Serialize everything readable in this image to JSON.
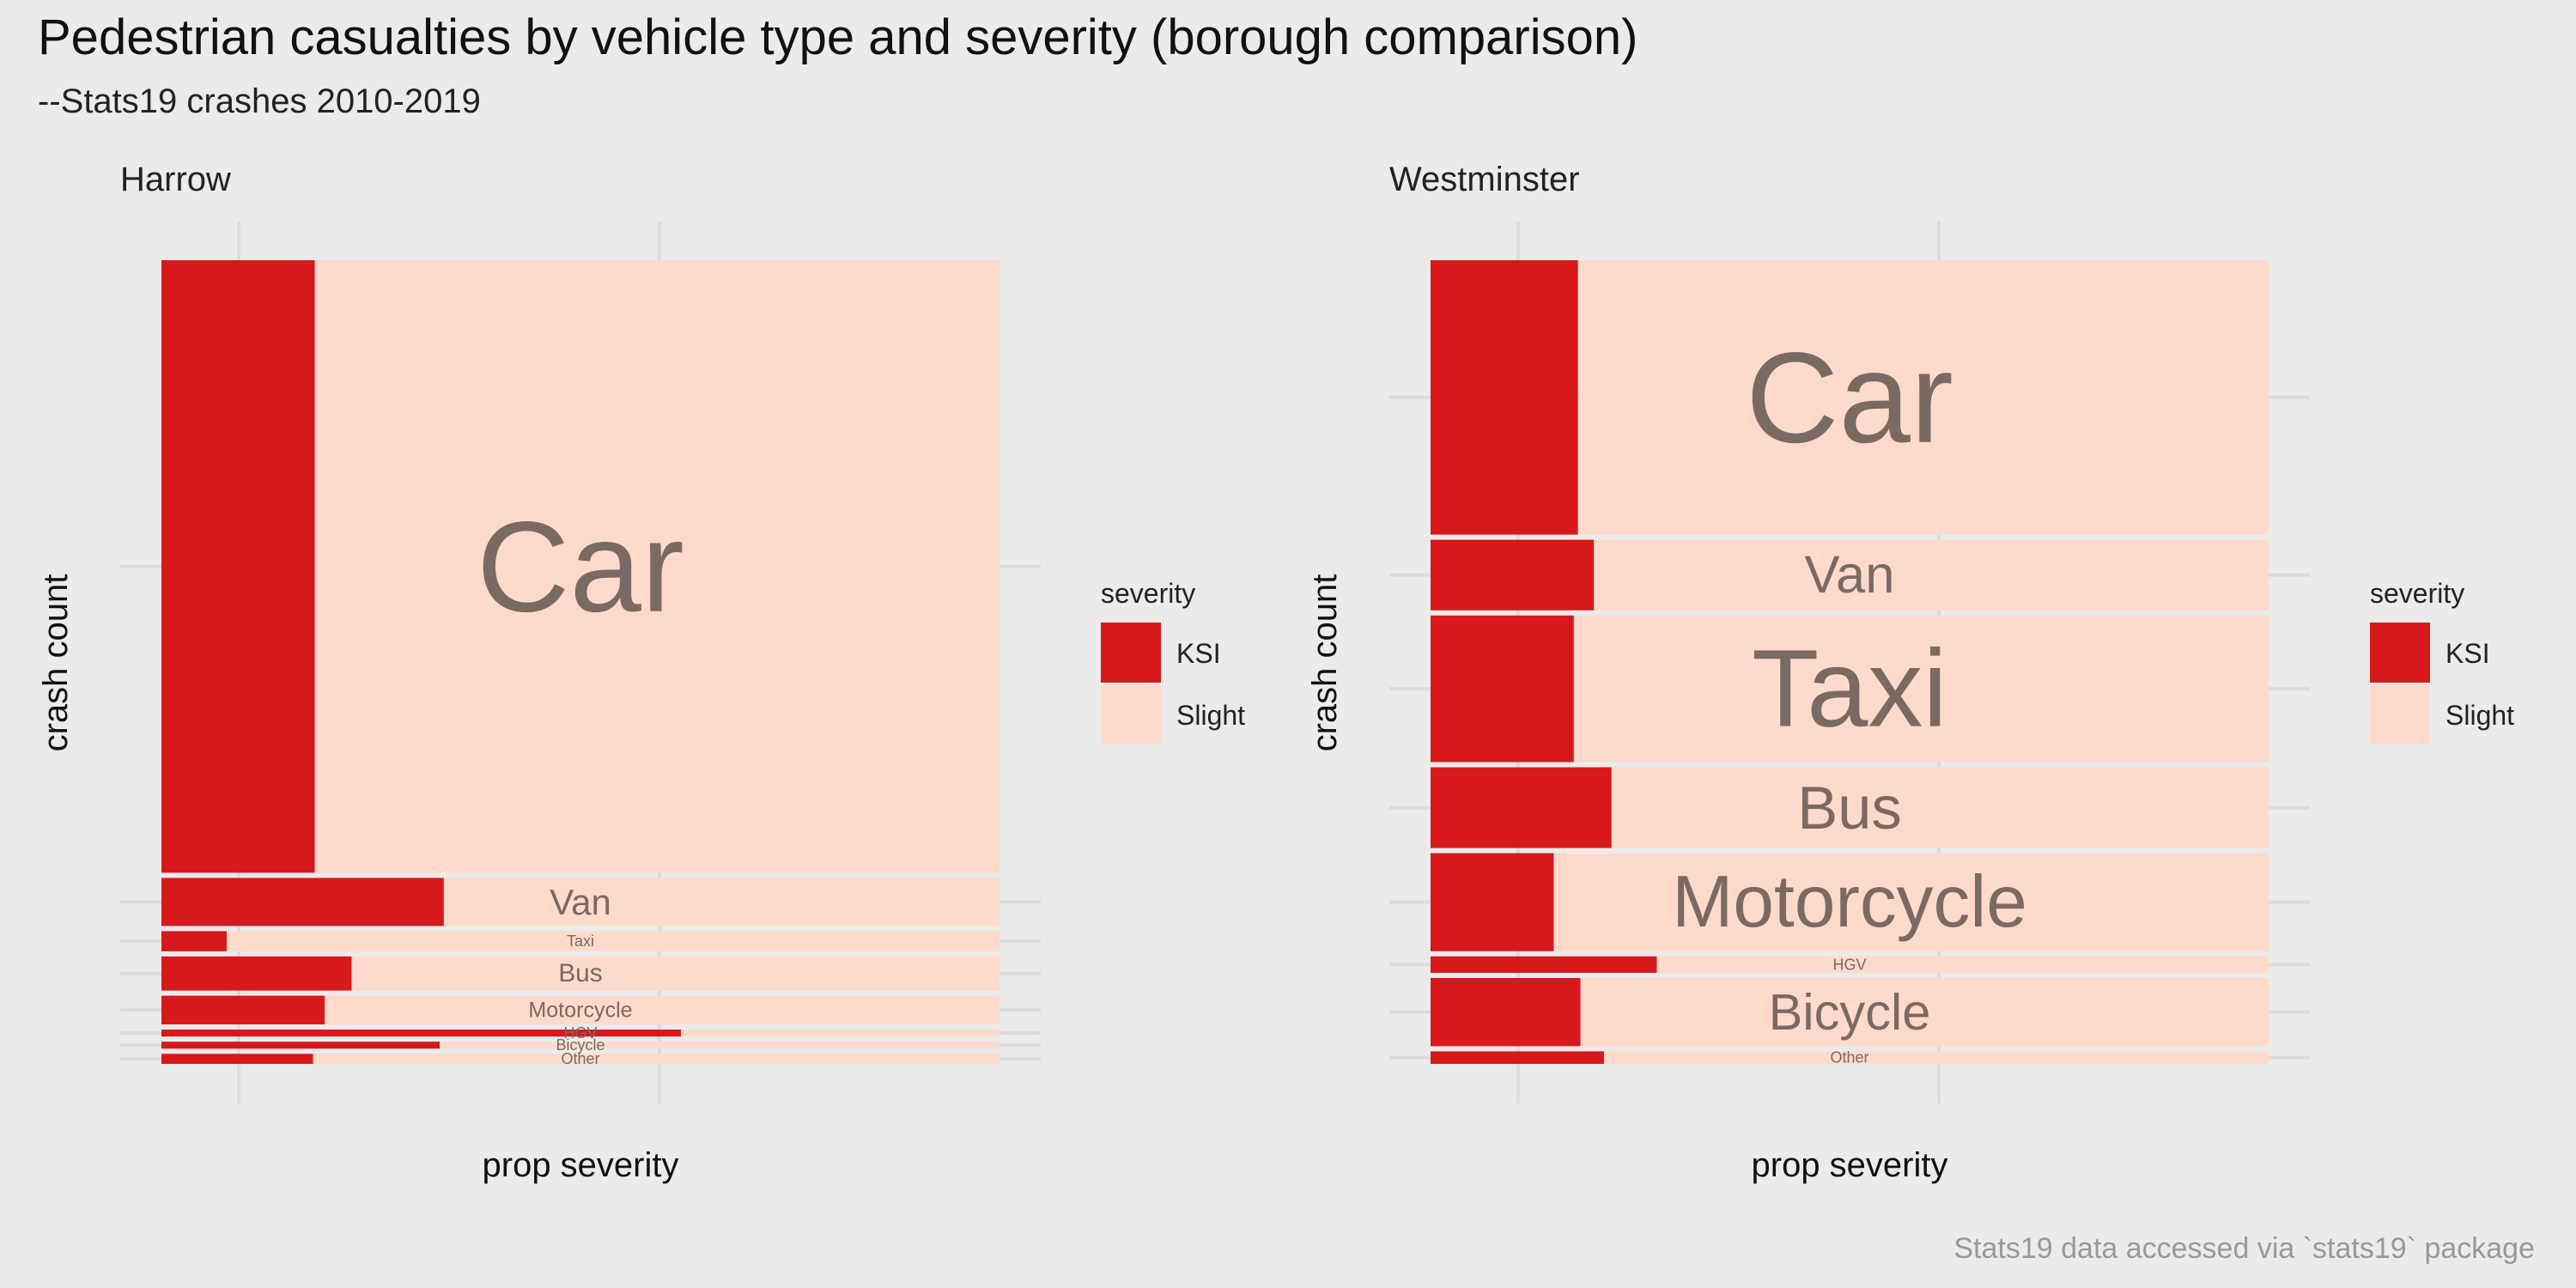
{
  "title": "Pedestrian casualties by vehicle type and severity (borough comparison)",
  "subtitle": "--Stats19 crashes 2010-2019",
  "caption": "Stats19 data accessed via `stats19` package",
  "colors": {
    "KSI": "#d7191c",
    "Slight": "#fedacb",
    "label": "#7a6a64",
    "background": "#ebebeb",
    "grid": "#dcdcdc"
  },
  "chart_data": [
    {
      "type": "mosaic",
      "facet_title": "Harrow",
      "xlabel": "prop severity",
      "ylabel": "crash count",
      "legend": {
        "title": "severity",
        "position": "right",
        "entries": [
          "KSI",
          "Slight"
        ]
      },
      "severity_levels": [
        "KSI",
        "Slight"
      ],
      "categories": [
        "Car",
        "Van",
        "Taxi",
        "Bus",
        "Motorcycle",
        "HGV",
        "Bicycle",
        "Other"
      ],
      "crash_count_share": [
        0.79,
        0.062,
        0.026,
        0.044,
        0.037,
        0.009,
        0.009,
        0.013
      ],
      "ksi_proportion": [
        0.183,
        0.337,
        0.078,
        0.227,
        0.195,
        0.62,
        0.332,
        0.181
      ]
    },
    {
      "type": "mosaic",
      "facet_title": "Westminster",
      "xlabel": "prop severity",
      "ylabel": "crash count",
      "legend": {
        "title": "severity",
        "position": "right",
        "entries": [
          "KSI",
          "Slight"
        ]
      },
      "severity_levels": [
        "KSI",
        "Slight"
      ],
      "categories": [
        "Car",
        "Van",
        "Taxi",
        "Bus",
        "Motorcycle",
        "HGV",
        "Bicycle",
        "Other"
      ],
      "crash_count_share": [
        0.35,
        0.09,
        0.187,
        0.103,
        0.125,
        0.021,
        0.087,
        0.016
      ],
      "ksi_proportion": [
        0.176,
        0.195,
        0.171,
        0.216,
        0.147,
        0.27,
        0.179,
        0.207
      ]
    }
  ]
}
